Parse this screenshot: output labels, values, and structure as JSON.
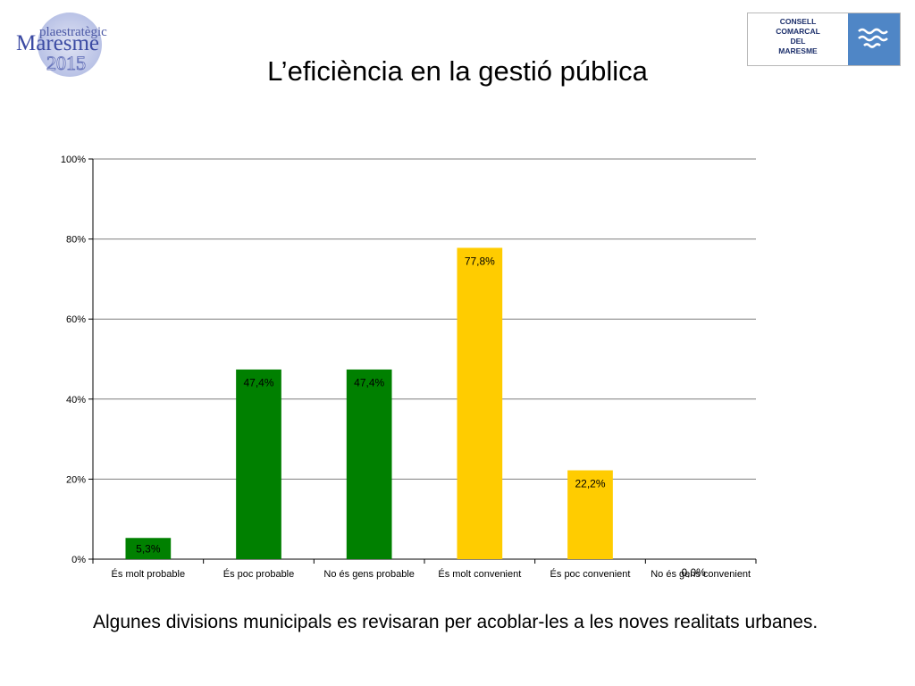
{
  "header": {
    "title": "L’eficiència en la gestió pública",
    "logo_left": {
      "top_text": "plaestratègic",
      "mid_text": "Maresme",
      "year": "2015"
    },
    "logo_right": {
      "lines": [
        "CONSELL",
        "COMARCAL",
        "DEL",
        "MARESME"
      ]
    }
  },
  "chart_data": {
    "type": "bar",
    "categories": [
      "És molt probable",
      "És poc probable",
      "No és gens probable",
      "És molt convenient",
      "És poc convenient",
      "No és gens convenient"
    ],
    "values": [
      5.3,
      47.4,
      47.4,
      77.8,
      22.2,
      0.0
    ],
    "data_labels": [
      "5,3%",
      "47,4%",
      "47,4%",
      "77,8%",
      "22,2%",
      "0,0%"
    ],
    "bar_colors": [
      "#008000",
      "#008000",
      "#008000",
      "#ffcc00",
      "#ffcc00",
      "#ffcc00"
    ],
    "yticks": [
      "0%",
      "20%",
      "40%",
      "60%",
      "80%",
      "100%"
    ],
    "ylim": [
      0,
      100
    ],
    "grid": true,
    "title": "",
    "xlabel": "",
    "ylabel": ""
  },
  "caption": "Algunes divisions municipals es revisaran per acoblar-les a les noves realitats urbanes."
}
